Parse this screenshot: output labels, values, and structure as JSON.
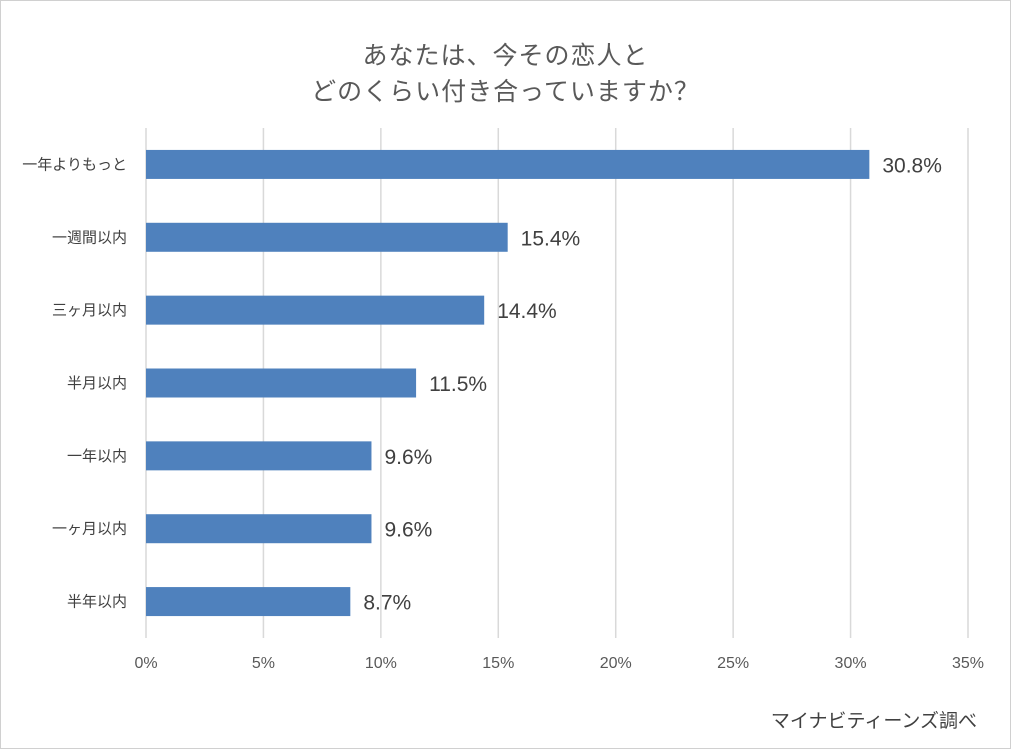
{
  "chart_data": {
    "type": "bar",
    "orientation": "horizontal",
    "title_lines": [
      "あなたは、今その恋人と",
      "どのくらい付き合っていますか？"
    ],
    "categories": [
      "一年よりもっと",
      "一週間以内",
      "三ヶ月以内",
      "半月以内",
      "一年以内",
      "一ヶ月以内",
      "半年以内"
    ],
    "values": [
      30.8,
      15.4,
      14.4,
      11.5,
      9.6,
      9.6,
      8.7
    ],
    "data_labels": [
      "30.8%",
      "15.4%",
      "14.4%",
      "11.5%",
      "9.6%",
      "9.6%",
      "8.7%"
    ],
    "x_ticks": [
      0,
      5,
      10,
      15,
      20,
      25,
      30,
      35
    ],
    "x_tick_labels": [
      "0%",
      "5%",
      "10%",
      "15%",
      "20%",
      "25%",
      "30%",
      "35%"
    ],
    "xlim": [
      0,
      35
    ],
    "grid": true,
    "legend": "none",
    "bar_color": "#4f81bd",
    "grid_color": "#d9d9d9"
  },
  "source": "マイナビティーンズ調べ"
}
